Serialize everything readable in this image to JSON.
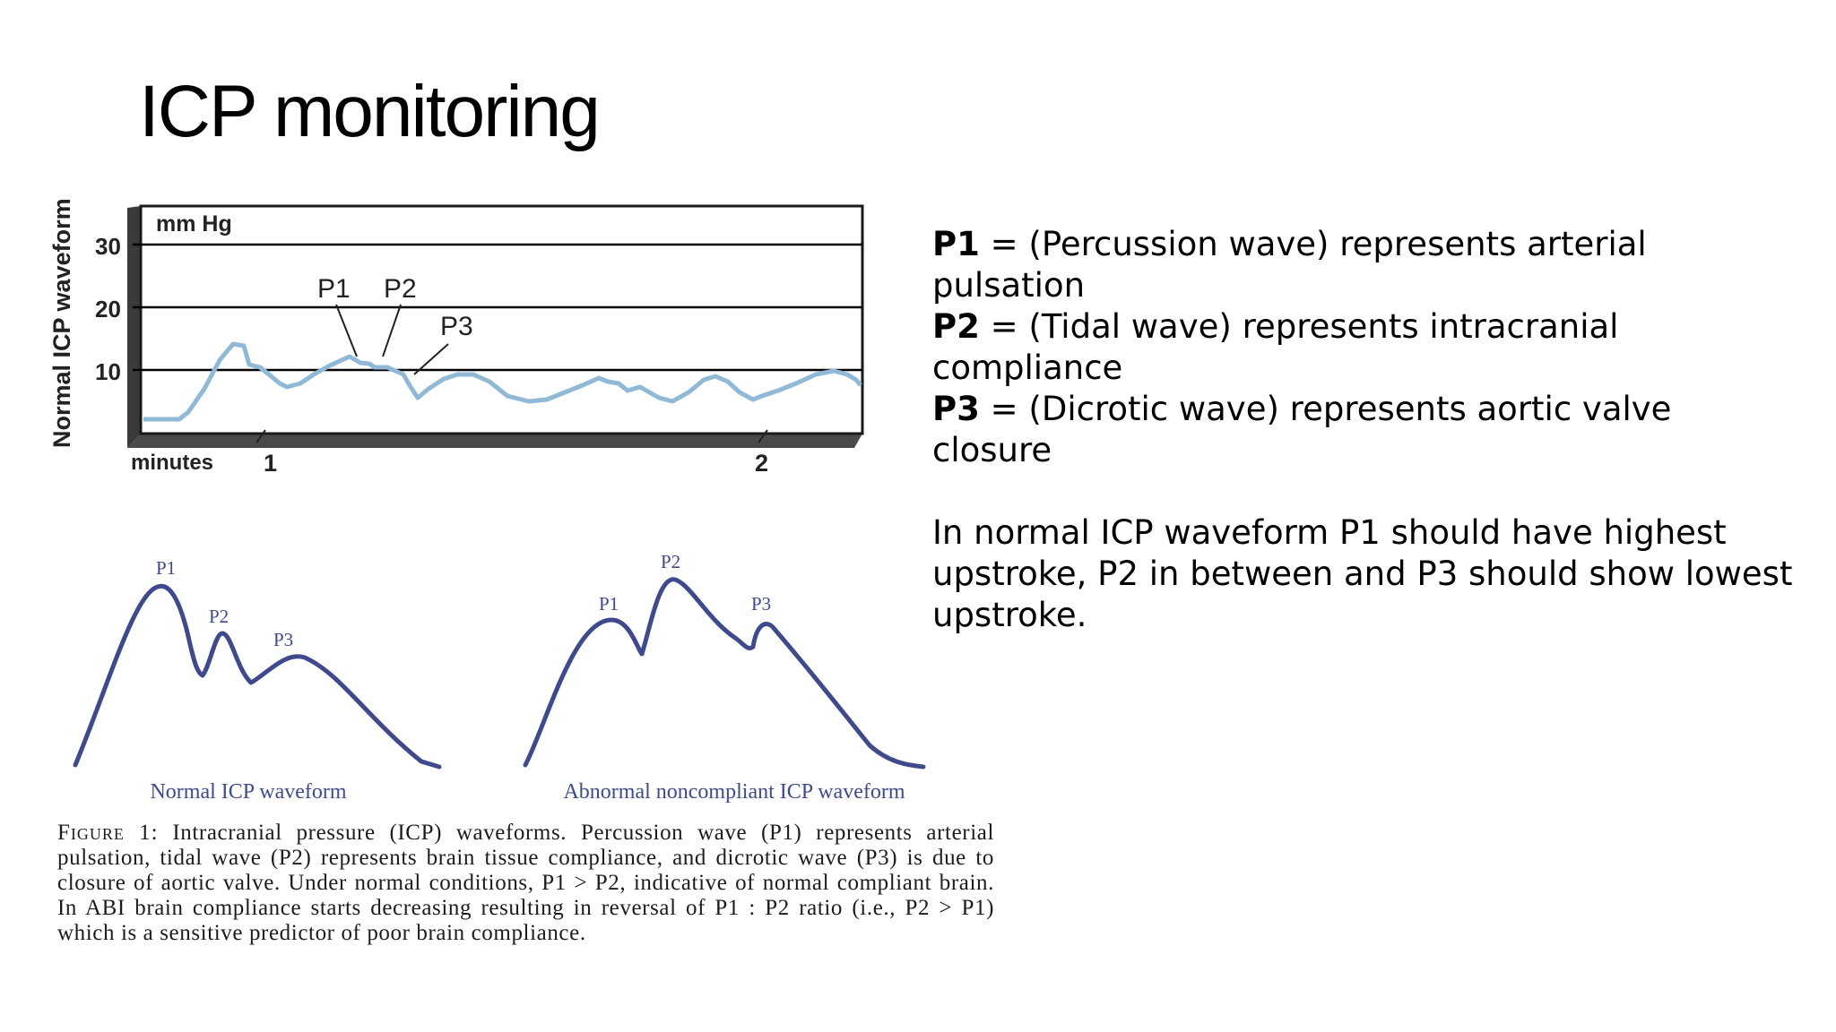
{
  "slide": {
    "title": "ICP monitoring"
  },
  "top_chart": {
    "unit_label": "mm Hg",
    "y_axis_label": "Normal ICP waveform",
    "y_ticks": [
      "30",
      "20",
      "10"
    ],
    "x_axis_label": "minutes",
    "x_ticks": [
      "1",
      "2"
    ],
    "annotations": [
      "P1",
      "P2",
      "P3"
    ]
  },
  "bottom_panels": {
    "normal": {
      "label": "Normal ICP waveform",
      "peaks": [
        "P1",
        "P2",
        "P3"
      ]
    },
    "abnormal": {
      "label": "Abnormal noncompliant ICP waveform",
      "peaks": [
        "P1",
        "P2",
        "P3"
      ]
    }
  },
  "caption": {
    "figure_label": "Figure 1:",
    "text": "Intracranial pressure (ICP) waveforms. Percussion wave (P1) represents arterial pulsation, tidal wave (P2) represents brain tissue compliance, and dicrotic wave (P3) is due to closure of aortic valve. Under normal conditions, P1 > P2, indicative of normal compliant brain. In ABI brain compliance starts decreasing resulting in reversal of P1 : P2 ratio (i.e., P2 > P1) which is a sensitive predictor of poor brain compliance."
  },
  "definitions": [
    {
      "term": "P1",
      "text": " = (Percussion wave) represents arterial pulsation"
    },
    {
      "term": "P2",
      "text": " = (Tidal wave) represents intracranial compliance"
    },
    {
      "term": "P3",
      "text": " = (Dicrotic wave) represents aortic valve closure"
    }
  ],
  "note": "In normal ICP waveform P1 should have highest upstroke, P2 in between and P3 should show lowest upstroke.",
  "colors": {
    "trace_light_blue": "#8fb9d6",
    "waveform_navy": "#3f4a8c",
    "gridline": "#000000"
  }
}
